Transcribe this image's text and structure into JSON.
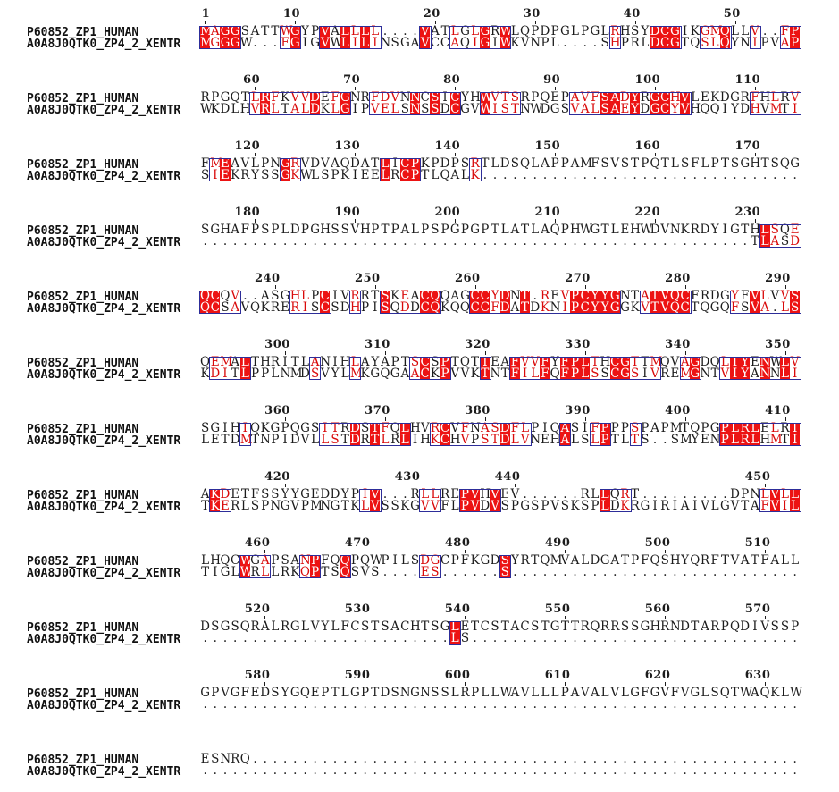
{
  "figure": {
    "type": "multiple-sequence-alignment",
    "labels": [
      "P60852_ZP1_HUMAN",
      "A0A8J0QTK0_ZP4_2_XENTR"
    ],
    "colors": {
      "identical_bg": "#ec1313",
      "identical_fg": "#ffffff",
      "similar_fg": "#d90b0b",
      "frame": "#2d2d99",
      "text": "#1c1c1c",
      "background": "#ffffff"
    },
    "similarity_groups": [
      "AILMVF",
      "FHWY",
      "HKR",
      "DE",
      "NQ",
      "ST",
      "AGS"
    ],
    "blocks": [
      {
        "ruler": [
          "1",
          "10",
          "20",
          "30",
          "40",
          "50"
        ],
        "sequences": [
          "MAGGSATTWGYPVALLLL....VATLGLGRWLQPDPGLPGLRHSYDCGIKGMQLLV..FP",
          "MGGGW...FGIGVWLILINSGAVCCAQIGIWKVNPL....SHPRLDCGTQSLQYNIPVAP"
        ]
      },
      {
        "ruler": [
          "60",
          "70",
          "80",
          "90",
          "100",
          "110"
        ],
        "sequences": [
          "RPGQTLRFKVVDEFGNRFDVNNCSICYHWVTSRPQEPAVFSADYRGCHVLEKDGRFHLRV",
          "WKDLHVRLTALDKLGIPVELSNSSDCGVWISTNWDGSVALSAEYDGCYVHQQIYDHVMTI"
        ]
      },
      {
        "ruler": [
          "120",
          "130",
          "140",
          "150",
          "160",
          "170"
        ],
        "sequences": [
          "FMEAVLPNGRVDVAQDATLICPKPDPSRTLDSQLAPPAMFSVSTPQTLSFLPTSGHTSQG",
          "SIEKRYSSGKWLSPKIEELRCPTLQALK................................"
        ]
      },
      {
        "ruler": [
          "180",
          "190",
          "200",
          "210",
          "220",
          "230"
        ],
        "sequences": [
          "SGHAFPSPLDPGHSSVHPTPALPSPGPGPTLATLAQPHWGTLEHWDVNKRDYIGTHLSQE",
          ".......................................................TLASD"
        ]
      },
      {
        "ruler": [
          "240",
          "250",
          "260",
          "270",
          "280",
          "290"
        ],
        "sequences": [
          "QCQV..ASGHLPCIVRRTSKEACQQAGCCYDNT.REVPCYYGNTATVQCFRDGYFVLVVS",
          "QCSAVQKRERISCSDHPISQDDCQKQQCCFDATDKNIPCYYGGKVTVQCTQGQFSVA.LS"
        ]
      },
      {
        "ruler": [
          "300",
          "310",
          "320",
          "330",
          "340",
          "350"
        ],
        "sequences": [
          "QEMALTHRITLANIHLAYAPTSCSPTQTTEAFVVFYFPLTHCGTTMQVAGDQLIYENWLV",
          "KDITLPPLNMDSVYLMKGQGAACKPVVKTNTFILFQFPLSSCGSIVREMGNTVIYANNLI"
        ]
      },
      {
        "ruler": [
          "360",
          "370",
          "380",
          "390",
          "400",
          "410"
        ],
        "sequences": [
          "SGIHIQKGPQGSITRDSTFQLHVRCVFNASDFLPIQASIFPPPSPAPMTQPGPLRLELRI",
          "LETDMTNPIDVLLSTDRTLRLIHKCHVPSTDLVNEHALSLPTLTS..SMYENPLRLHMTI"
        ]
      },
      {
        "ruler": [
          "420",
          "430",
          "440",
          "450"
        ],
        "sequences": [
          "AKDETFSSYYGEDDYPIV...RLLREPVHVEV......RLLQRT.........DPNLVLL",
          "TKERLSPNGVPMNGTKLVSSKGVVFLPVDVSPGSPVSKSPLDKRGIRIAIVLGVTAFVIL"
        ]
      },
      {
        "ruler": [
          "460",
          "470",
          "480",
          "490",
          "500",
          "510"
        ],
        "sequences": [
          "LHQCWGAPSANPFQQPQWPILSDGCPFKGDSYRTQMVALDGATPFQSHYQRFTVATFALL",
          "TIGLWRLLRKQPTSQSVS....ES......S............................."
        ]
      },
      {
        "ruler": [
          "520",
          "530",
          "540",
          "550",
          "560",
          "570"
        ],
        "sequences": [
          "DSGSQRALRGLVYLFCSTSACHTSGLETCSTACSTGTTRQRRSSGHRNDTARPQDIVSSP",
          ".........................LS................................."
        ]
      },
      {
        "ruler": [
          "580",
          "590",
          "600",
          "610",
          "620",
          "630"
        ],
        "sequences": [
          "GPVGFEDSYGQEPTLGPTDSNGNSSLRPLLWAVLLLPAVALVLGFGVFVGLSQTWAQKLW",
          "............................................................"
        ]
      },
      {
        "ruler": [],
        "sequences": [
          "ESNRQ",
          "....."
        ]
      }
    ]
  }
}
